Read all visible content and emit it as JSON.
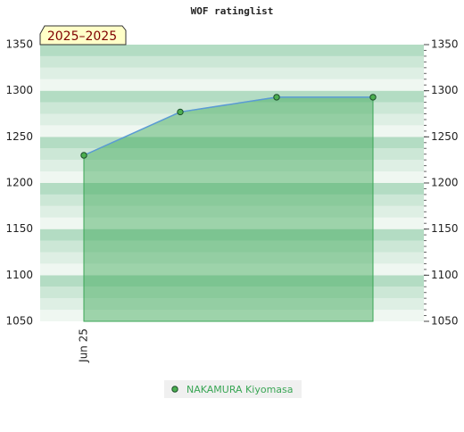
{
  "chart_data": {
    "type": "area",
    "title": "WOF ratinglist",
    "annotation": "2025–2025",
    "categories": [
      "Jun 25",
      null,
      null,
      null
    ],
    "series": [
      {
        "name": "NAKAMURA Kiyomasa",
        "color": "#3aa655",
        "line_color": "#5b9bd5",
        "values": [
          1230,
          1277,
          1293,
          1293
        ]
      }
    ],
    "ylim": [
      1050,
      1350
    ],
    "yticks": [
      1050,
      1100,
      1150,
      1200,
      1250,
      1300,
      1350
    ],
    "grid": true
  }
}
